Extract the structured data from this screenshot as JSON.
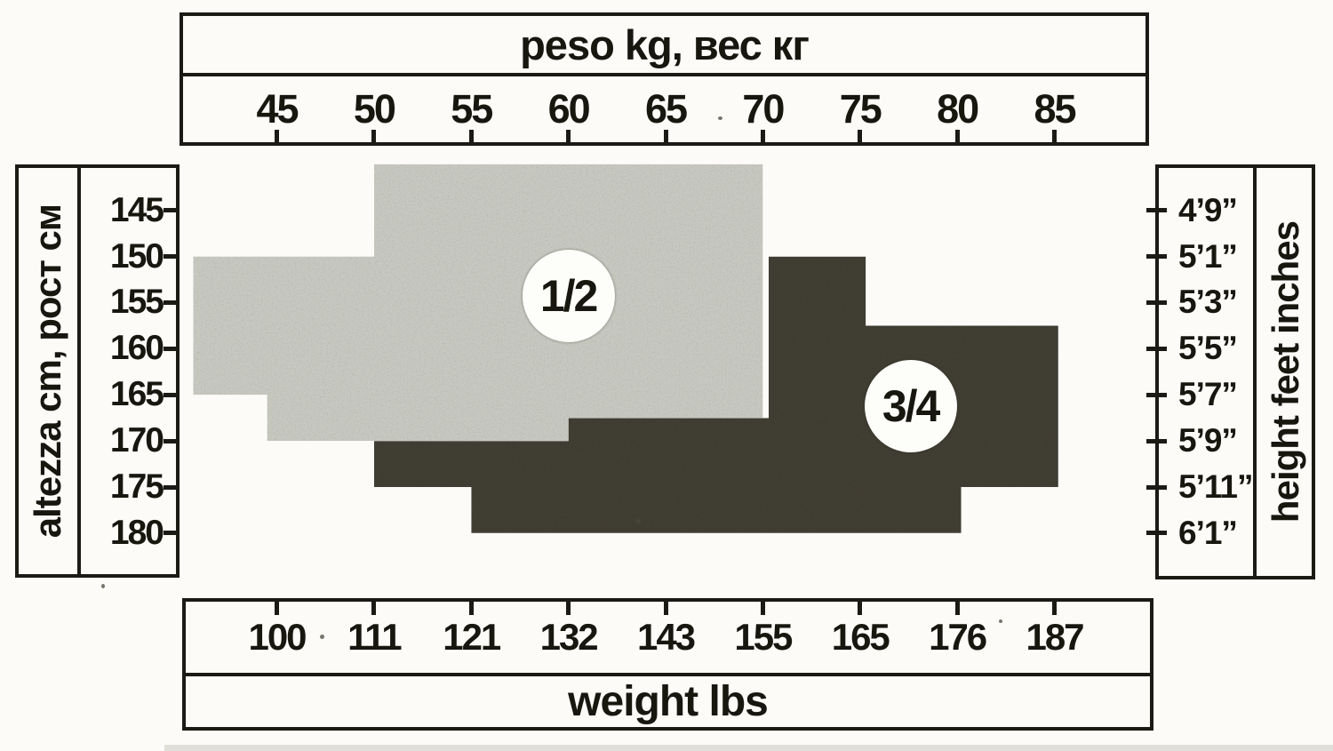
{
  "chart_data": {
    "type": "area",
    "description": "Scanned hosiery size chart: stepped shaded regions map body weight (kg top axis, lbs bottom axis) and height (cm left axis, feet-inches right axis) to garment sizes 1/2 and 3/4.",
    "grid": false,
    "x_axis": {
      "top_label": "peso kg, вес кг",
      "bottom_label": "weight lbs",
      "kg_ticks": [
        45,
        50,
        55,
        60,
        65,
        70,
        75,
        80,
        85
      ],
      "lbs_ticks": [
        100,
        111,
        121,
        132,
        143,
        155,
        165,
        176,
        187
      ],
      "kg_range": [
        42.5,
        87.5
      ]
    },
    "y_axis": {
      "left_label": "altezza cm, рост см",
      "right_label": "height feet inches",
      "cm_ticks": [
        145,
        150,
        155,
        160,
        165,
        170,
        175,
        180
      ],
      "ft_ticks": [
        "4’9”",
        "5’1”",
        "5’3”",
        "5’5”",
        "5’7”",
        "5’9”",
        "5’11”",
        "6’1”"
      ],
      "cm_range": [
        140,
        182.5
      ]
    },
    "regions": [
      {
        "label": "1/2",
        "fill_color": "#c7c8c0",
        "badge_center": {
          "kg": 60.0,
          "cm": 154.3
        },
        "polygon_kg_cm": [
          [
            50,
            140
          ],
          [
            70,
            140
          ],
          [
            70,
            167.5
          ],
          [
            60,
            167.5
          ],
          [
            60,
            170
          ],
          [
            44.5,
            170
          ],
          [
            44.5,
            165
          ],
          [
            40.7,
            165
          ],
          [
            40.7,
            150
          ],
          [
            50,
            150
          ]
        ]
      },
      {
        "label": "3/4",
        "fill_color": "#413e33",
        "badge_center": {
          "kg": 77.6,
          "cm": 166.2
        },
        "polygon_kg_cm": [
          [
            70.3,
            150
          ],
          [
            75.3,
            150
          ],
          [
            75.3,
            157.5
          ],
          [
            85.2,
            157.5
          ],
          [
            85.2,
            175
          ],
          [
            80.2,
            175
          ],
          [
            80.2,
            180
          ],
          [
            55,
            180
          ],
          [
            55,
            175
          ],
          [
            50,
            175
          ],
          [
            50,
            170
          ],
          [
            60,
            170
          ],
          [
            60,
            167.5
          ],
          [
            70.3,
            167.5
          ]
        ]
      }
    ]
  }
}
